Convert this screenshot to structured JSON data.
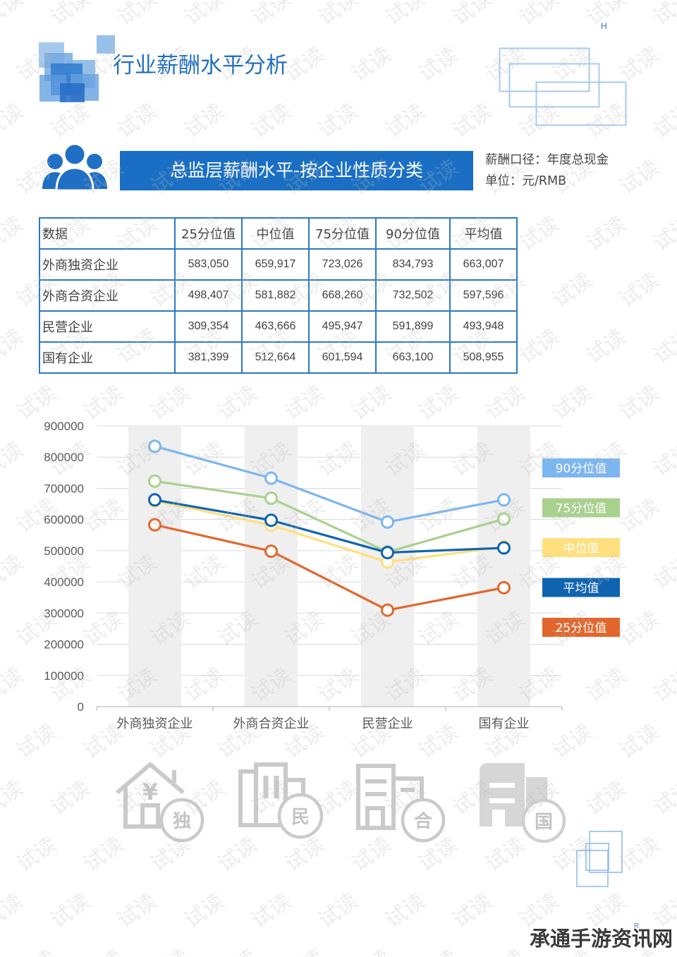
{
  "header": {
    "corner_mark": "H",
    "title": "行业薪酬水平分析"
  },
  "section": {
    "banner_title": "总监层薪酬水平-按企业性质分类",
    "note_caliber": "薪酬口径：年度总现金",
    "note_unit": "单位：元/RMB"
  },
  "table": {
    "columns": [
      "数据",
      "25分位值",
      "中位值",
      "75分位值",
      "90分位值",
      "平均值"
    ],
    "rows": [
      [
        "外商独资企业",
        "583,050",
        "659,917",
        "723,026",
        "834,793",
        "663,007"
      ],
      [
        "外商合资企业",
        "498,407",
        "581,882",
        "668,260",
        "732,502",
        "597,596"
      ],
      [
        "民营企业",
        "309,354",
        "463,666",
        "495,947",
        "591,899",
        "493,948"
      ],
      [
        "国有企业",
        "381,399",
        "512,664",
        "601,594",
        "663,100",
        "508,955"
      ]
    ]
  },
  "chart_data": {
    "type": "line",
    "categories": [
      "外商独资企业",
      "外商合资企业",
      "民营企业",
      "国有企业"
    ],
    "ylim": [
      0,
      900000
    ],
    "yticks": [
      0,
      100000,
      200000,
      300000,
      400000,
      500000,
      600000,
      700000,
      800000,
      900000
    ],
    "grid": true,
    "legend": "right",
    "series": [
      {
        "name": "90分位值",
        "color": "#7cb6f0",
        "values": [
          834793,
          732502,
          591899,
          663100
        ]
      },
      {
        "name": "75分位值",
        "color": "#a9d18e",
        "values": [
          723026,
          668260,
          495947,
          601594
        ]
      },
      {
        "name": "中位值",
        "color": "#ffdf7e",
        "values": [
          659917,
          581882,
          463666,
          512664
        ]
      },
      {
        "name": "平均值",
        "color": "#0f64b0",
        "values": [
          663007,
          597596,
          493948,
          508955
        ]
      },
      {
        "name": "25分位值",
        "color": "#e2662b",
        "values": [
          583050,
          498407,
          309354,
          381399
        ]
      }
    ]
  },
  "icons": [
    {
      "icon": "house-yen-icon",
      "symbol": "¥",
      "badge": "独"
    },
    {
      "icon": "building-icon",
      "badge": "民"
    },
    {
      "icon": "office-building-icon",
      "badge": "合"
    },
    {
      "icon": "state-building-icon",
      "badge": "国"
    }
  ],
  "watermark": {
    "tile_text": "试读",
    "site_text": "承通手游资讯网",
    "corner_mark": "R"
  },
  "colors": {
    "brand_blue": "#1a6fc4",
    "table_border": "#2b78c6",
    "band_gray": "#efefef",
    "icon_gray": "#cacaca",
    "deco_light_blue": "#a7cbec"
  }
}
